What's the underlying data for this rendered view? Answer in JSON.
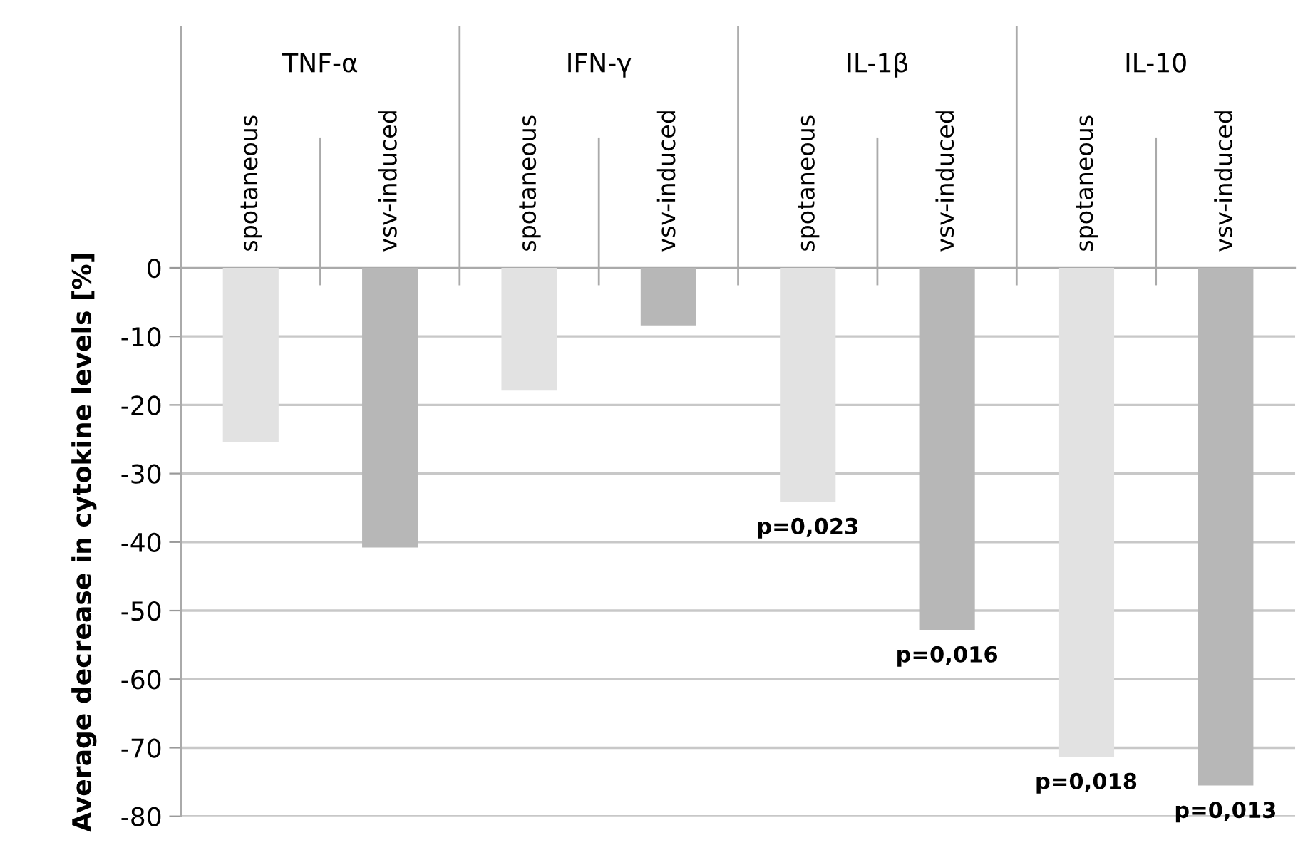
{
  "chart_data": {
    "type": "bar",
    "ylabel": "Average decrease in cytokine levels [%]",
    "categories": [
      "spotaneous",
      "vsv-induced",
      "spotaneous",
      "vsv-induced",
      "spotaneous",
      "vsv-induced",
      "spotaneous",
      "vsv-induced"
    ],
    "values": [
      -25.4,
      -40.8,
      -17.9,
      -8.4,
      -34.1,
      -52.8,
      -71.3,
      -75.5
    ],
    "colors": [
      "#e2e2e2",
      "#b7b7b7",
      "#e2e2e2",
      "#b7b7b7",
      "#e2e2e2",
      "#b7b7b7",
      "#e2e2e2",
      "#b7b7b7"
    ],
    "annotations": [
      "TNF-α",
      "IFN-γ",
      "IL-1β",
      "IL-10",
      "p=0,023",
      "p=0,016",
      "p=0,018",
      "p=0,013"
    ],
    "ylim": [
      -80,
      0
    ],
    "yticks": [
      -80,
      -70,
      -60,
      -50,
      -40,
      -30,
      -20,
      -10,
      0
    ],
    "grid": "y",
    "legend": false
  }
}
